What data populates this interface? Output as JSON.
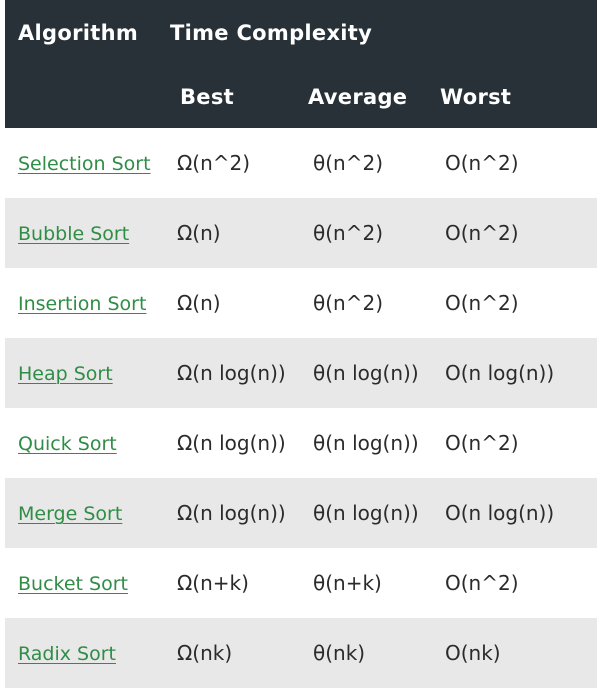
{
  "table": {
    "header": {
      "algorithm": "Algorithm",
      "time_complexity": "Time Complexity",
      "best": "Best",
      "average": "Average",
      "worst": "Worst"
    },
    "rows": [
      {
        "name": "Selection Sort",
        "best": "Ω(n^2)",
        "average": "θ(n^2)",
        "worst": "O(n^2)"
      },
      {
        "name": "Bubble Sort",
        "best": "Ω(n)",
        "average": "θ(n^2)",
        "worst": "O(n^2)"
      },
      {
        "name": "Insertion Sort",
        "best": "Ω(n)",
        "average": "θ(n^2)",
        "worst": "O(n^2)"
      },
      {
        "name": "Heap Sort",
        "best": "Ω(n log(n))",
        "average": "θ(n log(n))",
        "worst": "O(n log(n))"
      },
      {
        "name": "Quick Sort",
        "best": "Ω(n log(n))",
        "average": "θ(n log(n))",
        "worst": "O(n^2)"
      },
      {
        "name": "Merge Sort",
        "best": "Ω(n log(n))",
        "average": "θ(n log(n))",
        "worst": "O(n log(n))"
      },
      {
        "name": "Bucket Sort",
        "best": "Ω(n+k)",
        "average": "θ(n+k)",
        "worst": "O(n^2)"
      },
      {
        "name": "Radix Sort",
        "best": "Ω(nk)",
        "average": "θ(nk)",
        "worst": "O(nk)"
      }
    ]
  },
  "colors": {
    "header_bg": "#273137",
    "link": "#2f8d46",
    "stripe": "#e8e8e8"
  }
}
